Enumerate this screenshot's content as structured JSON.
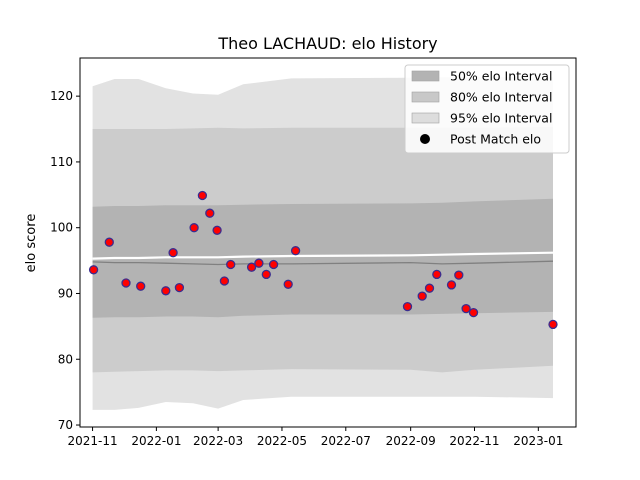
{
  "chart_data": {
    "type": "scatter",
    "title": "Theo LACHAUD: elo History",
    "xlabel": "",
    "ylabel": "elo score",
    "xlim": [
      "2021-10-20",
      "2023-02-06"
    ],
    "ylim": [
      69.7,
      125.8
    ],
    "x_ticks": [
      "2021-11",
      "2022-01",
      "2022-03",
      "2022-05",
      "2022-07",
      "2022-09",
      "2022-11",
      "2023-01"
    ],
    "y_ticks": [
      70,
      80,
      90,
      100,
      110,
      120
    ],
    "legend_position": "top-right",
    "legend": [
      {
        "label": "50% elo Interval",
        "kind": "patch",
        "color": "#b3b3b3"
      },
      {
        "label": "80% elo Interval",
        "kind": "patch",
        "color": "#c8c8c8"
      },
      {
        "label": "95% elo Interval",
        "kind": "patch",
        "color": "#dddddd"
      },
      {
        "label": "Post Match elo",
        "kind": "marker",
        "color": "#000000"
      }
    ],
    "colors": {
      "band50": "#b3b3b3",
      "band80": "#cccccc",
      "band95": "#e2e2e2",
      "mean_line": "#808080",
      "marker_fill": "#ff0000",
      "marker_edge": "#3b2d8f"
    },
    "bands": {
      "dates": [
        "2021-11-01",
        "2021-11-22",
        "2021-12-15",
        "2022-01-10",
        "2022-02-05",
        "2022-03-01",
        "2022-03-25",
        "2022-05-10",
        "2022-09-01",
        "2022-10-01",
        "2022-11-01",
        "2023-01-15"
      ],
      "p95_upper": [
        121.5,
        122.6,
        122.6,
        121.2,
        120.4,
        120.2,
        121.8,
        122.7,
        122.8,
        122.9,
        122.9,
        122.9
      ],
      "p95_lower": [
        72.3,
        72.3,
        72.6,
        73.5,
        73.3,
        72.5,
        73.8,
        74.3,
        74.3,
        74.3,
        74.3,
        74.1
      ],
      "p80_upper": [
        115.0,
        115.0,
        115.0,
        115.0,
        115.1,
        115.2,
        115.1,
        115.2,
        115.2,
        115.2,
        115.2,
        115.3
      ],
      "p80_lower": [
        78.0,
        78.1,
        78.2,
        78.3,
        78.3,
        78.2,
        78.3,
        78.5,
        78.4,
        78.0,
        78.4,
        79.0
      ],
      "p50_upper": [
        103.2,
        103.3,
        103.3,
        103.4,
        103.4,
        103.4,
        103.5,
        103.6,
        103.7,
        103.8,
        104.0,
        104.4
      ],
      "p50_lower": [
        86.3,
        86.4,
        86.4,
        86.5,
        86.5,
        86.4,
        86.6,
        86.8,
        86.8,
        86.9,
        87.0,
        87.2
      ],
      "mean": [
        94.8,
        94.7,
        94.7,
        94.6,
        94.5,
        94.4,
        94.5,
        94.5,
        94.7,
        94.5,
        94.6,
        94.9
      ],
      "median": [
        95.3,
        95.4,
        95.4,
        95.5,
        95.5,
        95.5,
        95.6,
        95.7,
        95.8,
        95.9,
        96.0,
        96.2
      ]
    },
    "points": [
      {
        "date": "2021-11-02",
        "elo": 93.6
      },
      {
        "date": "2021-11-17",
        "elo": 97.8
      },
      {
        "date": "2021-12-03",
        "elo": 91.6
      },
      {
        "date": "2021-12-17",
        "elo": 91.1
      },
      {
        "date": "2022-01-10",
        "elo": 90.4
      },
      {
        "date": "2022-01-17",
        "elo": 96.2
      },
      {
        "date": "2022-01-23",
        "elo": 90.9
      },
      {
        "date": "2022-02-06",
        "elo": 100.0
      },
      {
        "date": "2022-02-14",
        "elo": 104.9
      },
      {
        "date": "2022-02-21",
        "elo": 102.2
      },
      {
        "date": "2022-02-28",
        "elo": 99.6
      },
      {
        "date": "2022-03-07",
        "elo": 91.9
      },
      {
        "date": "2022-03-13",
        "elo": 94.4
      },
      {
        "date": "2022-04-02",
        "elo": 94.0
      },
      {
        "date": "2022-04-09",
        "elo": 94.6
      },
      {
        "date": "2022-04-16",
        "elo": 92.9
      },
      {
        "date": "2022-04-23",
        "elo": 94.4
      },
      {
        "date": "2022-05-07",
        "elo": 91.4
      },
      {
        "date": "2022-05-14",
        "elo": 96.5
      },
      {
        "date": "2022-08-29",
        "elo": 88.0
      },
      {
        "date": "2022-09-12",
        "elo": 89.6
      },
      {
        "date": "2022-09-19",
        "elo": 90.8
      },
      {
        "date": "2022-09-26",
        "elo": 92.9
      },
      {
        "date": "2022-10-10",
        "elo": 91.3
      },
      {
        "date": "2022-10-17",
        "elo": 92.8
      },
      {
        "date": "2022-10-24",
        "elo": 87.7
      },
      {
        "date": "2022-10-31",
        "elo": 87.1
      },
      {
        "date": "2023-01-15",
        "elo": 85.3
      }
    ]
  }
}
